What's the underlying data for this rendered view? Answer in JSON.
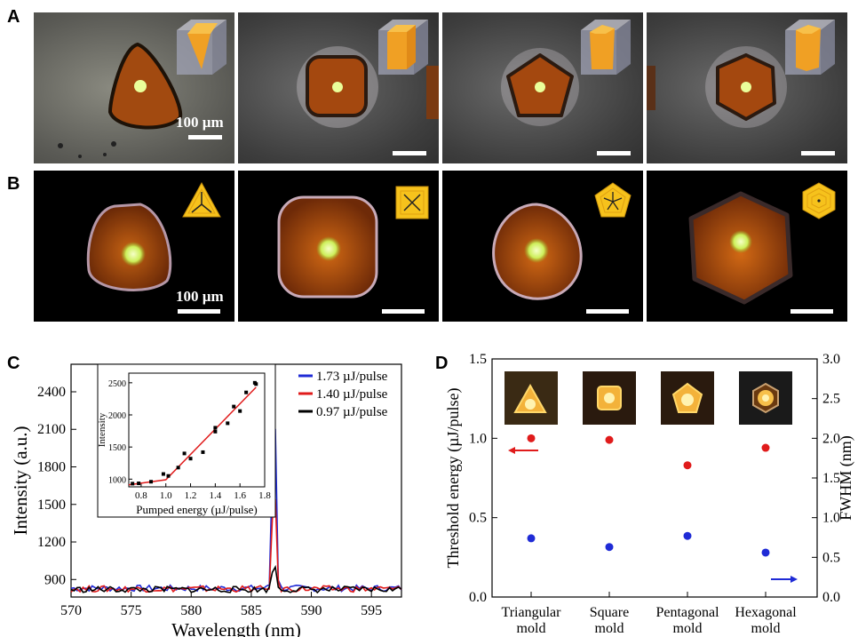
{
  "panels": {
    "A": {
      "letter": "A",
      "scale_label": "100 µm"
    },
    "B": {
      "letter": "B",
      "scale_label": "100 µm"
    },
    "C": {
      "letter": "C"
    },
    "D": {
      "letter": "D"
    }
  },
  "colors": {
    "blue": "#1f2bd6",
    "red": "#e01b1b",
    "black": "#000000",
    "fit": "#e01b1b",
    "crystal": "#b5530f",
    "spot": "#eaff9a"
  },
  "chart_data": [
    {
      "type": "line",
      "id": "C-main",
      "xlabel": "Wavelength (nm)",
      "ylabel": "Intensity (a.u.)",
      "xlim": [
        570,
        597.5
      ],
      "ylim": [
        760,
        2620
      ],
      "xticks": [
        570,
        575,
        580,
        585,
        590,
        595
      ],
      "yticks": [
        900,
        1200,
        1500,
        1800,
        2100,
        2400
      ],
      "peak_wavelength": 586.9,
      "series": [
        {
          "name": "1.73 µJ/pulse",
          "color": "#1f2bd6",
          "baseline": 830,
          "peak": 2480
        },
        {
          "name": "1.40 µJ/pulse",
          "color": "#e01b1b",
          "baseline": 825,
          "peak": 1760
        },
        {
          "name": "0.97 µJ/pulse",
          "color": "#000000",
          "baseline": 820,
          "peak": 1065
        }
      ]
    },
    {
      "type": "scatter",
      "id": "C-inset",
      "xlabel": "Pumped energy (µJ/pulse)",
      "ylabel": "Intensity",
      "xlim": [
        0.7,
        1.8
      ],
      "ylim": [
        880,
        2650
      ],
      "xticks": [
        0.8,
        1.0,
        1.2,
        1.4,
        1.6,
        1.8
      ],
      "yticks": [
        1000,
        1500,
        2000,
        2500
      ],
      "points": [
        [
          0.73,
          930
        ],
        [
          0.78,
          935
        ],
        [
          0.88,
          960
        ],
        [
          0.98,
          1080
        ],
        [
          1.02,
          1050
        ],
        [
          1.1,
          1180
        ],
        [
          1.15,
          1400
        ],
        [
          1.2,
          1320
        ],
        [
          1.3,
          1420
        ],
        [
          1.4,
          1800
        ],
        [
          1.4,
          1740
        ],
        [
          1.5,
          1870
        ],
        [
          1.55,
          2130
        ],
        [
          1.6,
          2060
        ],
        [
          1.65,
          2350
        ],
        [
          1.72,
          2500
        ],
        [
          1.73,
          2480
        ]
      ],
      "fit": [
        [
          0.7,
          910
        ],
        [
          1.0,
          990
        ],
        [
          1.73,
          2430
        ]
      ]
    },
    {
      "type": "scatter",
      "id": "D",
      "categories": [
        "Triangular mold",
        "Square mold",
        "Pentagonal mold",
        "Hexagonal mold"
      ],
      "ylabel_left": "Threshold energy (µJ/pulse)",
      "ylabel_right": "FWHM (nm)",
      "ylim_left": [
        0,
        1.5
      ],
      "ylim_right": [
        0,
        3.0
      ],
      "yticks_left": [
        "0.0",
        "0.5",
        "1.0",
        "1.5"
      ],
      "yticks_right": [
        "0.0",
        "0.5",
        "1.0",
        "1.5",
        "2.0",
        "2.5",
        "3.0"
      ],
      "series": [
        {
          "axis": "left",
          "color": "#e01b1b",
          "values": [
            1.0,
            0.99,
            0.83,
            0.94
          ]
        },
        {
          "axis": "right",
          "color": "#1f2bd6",
          "values": [
            0.74,
            0.63,
            0.77,
            0.56
          ]
        }
      ]
    }
  ]
}
